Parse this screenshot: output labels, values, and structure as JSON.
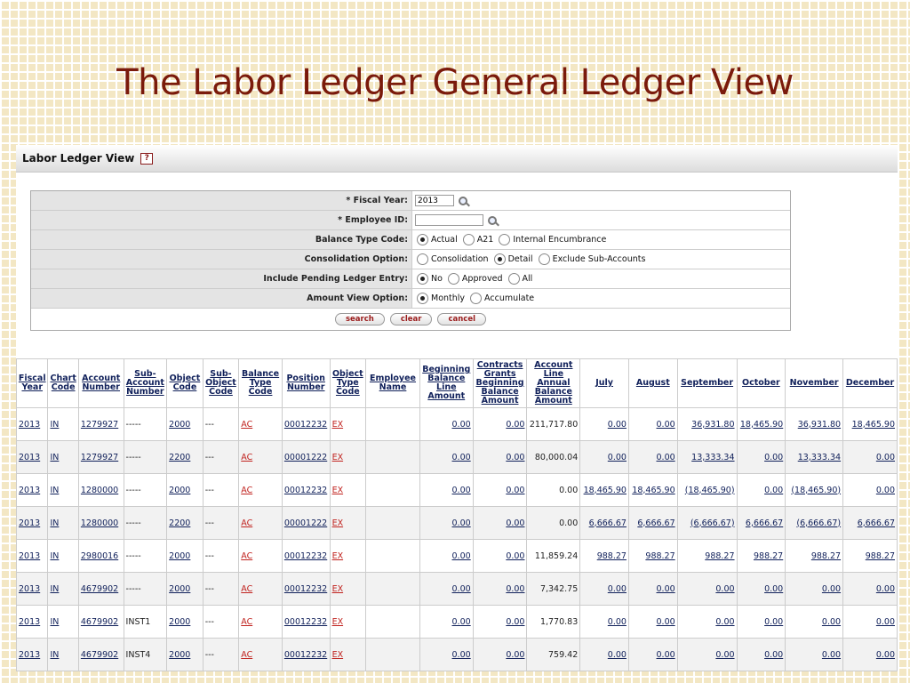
{
  "slide": {
    "title": "The Labor Ledger General Ledger View"
  },
  "panel": {
    "title": "Labor Ledger View",
    "help": "?"
  },
  "form": {
    "fiscal_year": {
      "label": "*  Fiscal Year:",
      "value": "2013"
    },
    "employee_id": {
      "label": "*  Employee ID:",
      "value": ""
    },
    "balance_type": {
      "label": "Balance Type Code:",
      "options": [
        "Actual",
        "A21",
        "Internal Encumbrance"
      ],
      "selected": 0
    },
    "consolidation": {
      "label": "Consolidation Option:",
      "options": [
        "Consolidation",
        "Detail",
        "Exclude Sub-Accounts"
      ],
      "selected": 1
    },
    "pending": {
      "label": "Include Pending Ledger Entry:",
      "options": [
        "No",
        "Approved",
        "All"
      ],
      "selected": 0
    },
    "amount_view": {
      "label": "Amount View Option:",
      "options": [
        "Monthly",
        "Accumulate"
      ],
      "selected": 0
    },
    "buttons": {
      "search": "search",
      "clear": "clear",
      "cancel": "cancel"
    }
  },
  "table": {
    "headers": [
      "Fiscal Year",
      "Chart Code",
      "Account Number",
      "Sub-Account Number",
      "Object Code",
      "Sub-Object Code",
      "Balance Type Code",
      "Position Number",
      "Object Type Code",
      "Employee Name",
      "Beginning Balance Line Amount",
      "Contracts Grants Beginning Balance Amount",
      "Account Line Annual Balance Amount",
      "July",
      "August",
      "September",
      "October",
      "November",
      "December"
    ],
    "rows": [
      [
        "2013",
        "IN",
        "1279927",
        "-----",
        "2000",
        "---",
        "AC",
        "00012232",
        "EX",
        "",
        "0.00",
        "0.00",
        "211,717.80",
        "0.00",
        "0.00",
        "36,931.80",
        "18,465.90",
        "36,931.80",
        "18,465.90"
      ],
      [
        "2013",
        "IN",
        "1279927",
        "-----",
        "2200",
        "---",
        "AC",
        "00001222",
        "EX",
        "",
        "0.00",
        "0.00",
        "80,000.04",
        "0.00",
        "0.00",
        "13,333.34",
        "0.00",
        "13,333.34",
        "0.00"
      ],
      [
        "2013",
        "IN",
        "1280000",
        "-----",
        "2000",
        "---",
        "AC",
        "00012232",
        "EX",
        "",
        "0.00",
        "0.00",
        "0.00",
        "18,465.90",
        "18,465.90",
        "(18,465.90)",
        "0.00",
        "(18,465.90)",
        "0.00"
      ],
      [
        "2013",
        "IN",
        "1280000",
        "-----",
        "2200",
        "---",
        "AC",
        "00001222",
        "EX",
        "",
        "0.00",
        "0.00",
        "0.00",
        "6,666.67",
        "6,666.67",
        "(6,666.67)",
        "6,666.67",
        "(6,666.67)",
        "6,666.67"
      ],
      [
        "2013",
        "IN",
        "2980016",
        "-----",
        "2000",
        "---",
        "AC",
        "00012232",
        "EX",
        "",
        "0.00",
        "0.00",
        "11,859.24",
        "988.27",
        "988.27",
        "988.27",
        "988.27",
        "988.27",
        "988.27"
      ],
      [
        "2013",
        "IN",
        "4679902",
        "-----",
        "2000",
        "---",
        "AC",
        "00012232",
        "EX",
        "",
        "0.00",
        "0.00",
        "7,342.75",
        "0.00",
        "0.00",
        "0.00",
        "0.00",
        "0.00",
        "0.00"
      ],
      [
        "2013",
        "IN",
        "4679902",
        "INST1",
        "2000",
        "---",
        "AC",
        "00012232",
        "EX",
        "",
        "0.00",
        "0.00",
        "1,770.83",
        "0.00",
        "0.00",
        "0.00",
        "0.00",
        "0.00",
        "0.00"
      ],
      [
        "2013",
        "IN",
        "4679902",
        "INST4",
        "2000",
        "---",
        "AC",
        "00012232",
        "EX",
        "",
        "0.00",
        "0.00",
        "759.42",
        "0.00",
        "0.00",
        "0.00",
        "0.00",
        "0.00",
        "0.00"
      ]
    ]
  }
}
